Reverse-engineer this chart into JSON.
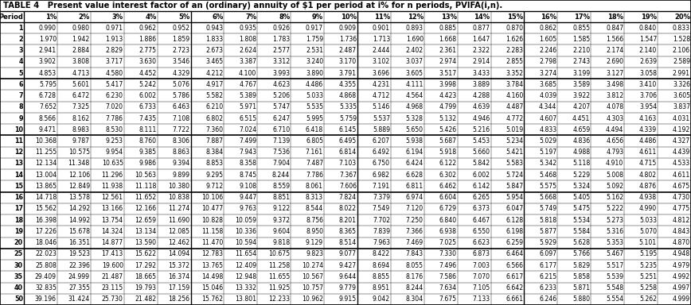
{
  "title": "TABLE 4   Present value interest factor of an (ordinary) annuity of $1 per period at i% for n periods, PVIFA(i,n).",
  "columns": [
    "Period",
    "1%",
    "2%",
    "3%",
    "4%",
    "5%",
    "6%",
    "7%",
    "8%",
    "9%",
    "10%",
    "11%",
    "12%",
    "13%",
    "14%",
    "15%",
    "16%",
    "17%",
    "18%",
    "19%",
    "20%"
  ],
  "rows": [
    [
      1,
      0.99,
      0.98,
      0.971,
      0.962,
      0.952,
      0.943,
      0.935,
      0.926,
      0.917,
      0.909,
      0.901,
      0.893,
      0.885,
      0.877,
      0.87,
      0.862,
      0.855,
      0.847,
      0.84,
      0.833
    ],
    [
      2,
      1.97,
      1.942,
      1.913,
      1.886,
      1.859,
      1.833,
      1.808,
      1.783,
      1.759,
      1.736,
      1.713,
      1.69,
      1.668,
      1.647,
      1.626,
      1.605,
      1.585,
      1.566,
      1.547,
      1.528
    ],
    [
      3,
      2.941,
      2.884,
      2.829,
      2.775,
      2.723,
      2.673,
      2.624,
      2.577,
      2.531,
      2.487,
      2.444,
      2.402,
      2.361,
      2.322,
      2.283,
      2.246,
      2.21,
      2.174,
      2.14,
      2.106
    ],
    [
      4,
      3.902,
      3.808,
      3.717,
      3.63,
      3.546,
      3.465,
      3.387,
      3.312,
      3.24,
      3.17,
      3.102,
      3.037,
      2.974,
      2.914,
      2.855,
      2.798,
      2.743,
      2.69,
      2.639,
      2.589
    ],
    [
      5,
      4.853,
      4.713,
      4.58,
      4.452,
      4.329,
      4.212,
      4.1,
      3.993,
      3.89,
      3.791,
      3.696,
      3.605,
      3.517,
      3.433,
      3.352,
      3.274,
      3.199,
      3.127,
      3.058,
      2.991
    ],
    [
      6,
      5.795,
      5.601,
      5.417,
      5.242,
      5.076,
      4.917,
      4.767,
      4.623,
      4.486,
      4.355,
      4.231,
      4.111,
      3.998,
      3.889,
      3.784,
      3.685,
      3.589,
      3.498,
      3.41,
      3.326
    ],
    [
      7,
      6.728,
      6.472,
      6.23,
      6.002,
      5.786,
      5.582,
      5.389,
      5.206,
      5.033,
      4.868,
      4.712,
      4.564,
      4.423,
      4.288,
      4.16,
      4.039,
      3.922,
      3.812,
      3.706,
      3.605
    ],
    [
      8,
      7.652,
      7.325,
      7.02,
      6.733,
      6.463,
      6.21,
      5.971,
      5.747,
      5.535,
      5.335,
      5.146,
      4.968,
      4.799,
      4.639,
      4.487,
      4.344,
      4.207,
      4.078,
      3.954,
      3.837
    ],
    [
      9,
      8.566,
      8.162,
      7.786,
      7.435,
      7.108,
      6.802,
      6.515,
      6.247,
      5.995,
      5.759,
      5.537,
      5.328,
      5.132,
      4.946,
      4.772,
      4.607,
      4.451,
      4.303,
      4.163,
      4.031
    ],
    [
      10,
      9.471,
      8.983,
      8.53,
      8.111,
      7.722,
      7.36,
      7.024,
      6.71,
      6.418,
      6.145,
      5.889,
      5.65,
      5.426,
      5.216,
      5.019,
      4.833,
      4.659,
      4.494,
      4.339,
      4.192
    ],
    [
      11,
      10.368,
      9.787,
      9.253,
      8.76,
      8.306,
      7.887,
      7.499,
      7.139,
      6.805,
      6.495,
      6.207,
      5.938,
      5.687,
      5.453,
      5.234,
      5.029,
      4.836,
      4.656,
      4.486,
      4.327
    ],
    [
      12,
      11.255,
      10.575,
      9.954,
      9.385,
      8.863,
      8.384,
      7.943,
      7.536,
      7.161,
      6.814,
      6.492,
      6.194,
      5.918,
      5.66,
      5.421,
      5.197,
      4.988,
      4.793,
      4.611,
      4.439
    ],
    [
      13,
      12.134,
      11.348,
      10.635,
      9.986,
      9.394,
      8.853,
      8.358,
      7.904,
      7.487,
      7.103,
      6.75,
      6.424,
      6.122,
      5.842,
      5.583,
      5.342,
      5.118,
      4.91,
      4.715,
      4.533
    ],
    [
      14,
      13.004,
      12.106,
      11.296,
      10.563,
      9.899,
      9.295,
      8.745,
      8.244,
      7.786,
      7.367,
      6.982,
      6.628,
      6.302,
      6.002,
      5.724,
      5.468,
      5.229,
      5.008,
      4.802,
      4.611
    ],
    [
      15,
      13.865,
      12.849,
      11.938,
      11.118,
      10.38,
      9.712,
      9.108,
      8.559,
      8.061,
      7.606,
      7.191,
      6.811,
      6.462,
      6.142,
      5.847,
      5.575,
      5.324,
      5.092,
      4.876,
      4.675
    ],
    [
      16,
      14.718,
      13.578,
      12.561,
      11.652,
      10.838,
      10.106,
      9.447,
      8.851,
      8.313,
      7.824,
      7.379,
      6.974,
      6.604,
      6.265,
      5.954,
      5.668,
      5.405,
      5.162,
      4.938,
      4.73
    ],
    [
      17,
      15.562,
      14.292,
      13.166,
      12.166,
      11.274,
      10.477,
      9.763,
      9.122,
      8.544,
      8.022,
      7.549,
      7.12,
      6.729,
      6.373,
      6.047,
      5.749,
      5.475,
      5.222,
      4.99,
      4.775
    ],
    [
      18,
      16.398,
      14.992,
      13.754,
      12.659,
      11.69,
      10.828,
      10.059,
      9.372,
      8.756,
      8.201,
      7.702,
      7.25,
      6.84,
      6.467,
      6.128,
      5.818,
      5.534,
      5.273,
      5.033,
      4.812
    ],
    [
      19,
      17.226,
      15.678,
      14.324,
      13.134,
      12.085,
      11.158,
      10.336,
      9.604,
      8.95,
      8.365,
      7.839,
      7.366,
      6.938,
      6.55,
      6.198,
      5.877,
      5.584,
      5.316,
      5.07,
      4.843
    ],
    [
      20,
      18.046,
      16.351,
      14.877,
      13.59,
      12.462,
      11.47,
      10.594,
      9.818,
      9.129,
      8.514,
      7.963,
      7.469,
      7.025,
      6.623,
      6.259,
      5.929,
      5.628,
      5.353,
      5.101,
      4.87
    ],
    [
      25,
      22.023,
      19.523,
      17.413,
      15.622,
      14.094,
      12.783,
      11.654,
      10.675,
      9.823,
      9.077,
      8.422,
      7.843,
      7.33,
      6.873,
      6.464,
      6.097,
      5.766,
      5.467,
      5.195,
      4.948
    ],
    [
      30,
      25.808,
      22.396,
      19.6,
      17.292,
      15.372,
      13.765,
      12.409,
      11.258,
      10.274,
      9.427,
      8.694,
      8.055,
      7.496,
      7.003,
      6.566,
      6.177,
      5.829,
      5.517,
      5.235,
      4.979
    ],
    [
      35,
      29.409,
      24.999,
      21.487,
      18.665,
      16.374,
      14.498,
      12.948,
      11.655,
      10.567,
      9.644,
      8.855,
      8.176,
      7.586,
      7.07,
      6.617,
      6.215,
      5.858,
      5.539,
      5.251,
      4.992
    ],
    [
      40,
      32.835,
      27.355,
      23.115,
      19.793,
      17.159,
      15.046,
      13.332,
      11.925,
      10.757,
      9.779,
      8.951,
      8.244,
      7.634,
      7.105,
      6.642,
      6.233,
      5.871,
      5.548,
      5.258,
      4.997
    ],
    [
      50,
      39.196,
      31.424,
      25.73,
      21.482,
      18.256,
      15.762,
      13.801,
      12.233,
      10.962,
      9.915,
      9.042,
      8.304,
      7.675,
      7.133,
      6.661,
      6.246,
      5.88,
      5.554,
      5.262,
      4.999
    ]
  ],
  "group_borders": [
    5,
    10,
    15,
    20
  ],
  "bg": "#ffffff",
  "border_color": "#000000",
  "text_color": "#000000",
  "title_fontsize": 7.2,
  "header_fontsize": 6.0,
  "cell_fontsize": 5.6,
  "period_fontsize": 5.8
}
